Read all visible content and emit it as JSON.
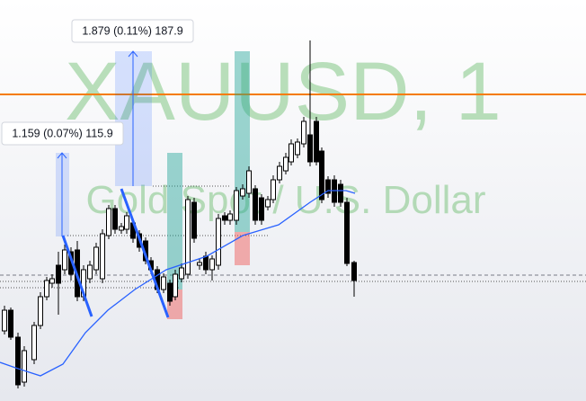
{
  "watermark": {
    "symbol": "XAUUSD, 1",
    "description": "Gold Spot / U.S. Dollar"
  },
  "measurements": [
    {
      "label": "1.879 (0.11%) 187.9"
    },
    {
      "label": "1.159 (0.07%) 115.9"
    }
  ]
}
